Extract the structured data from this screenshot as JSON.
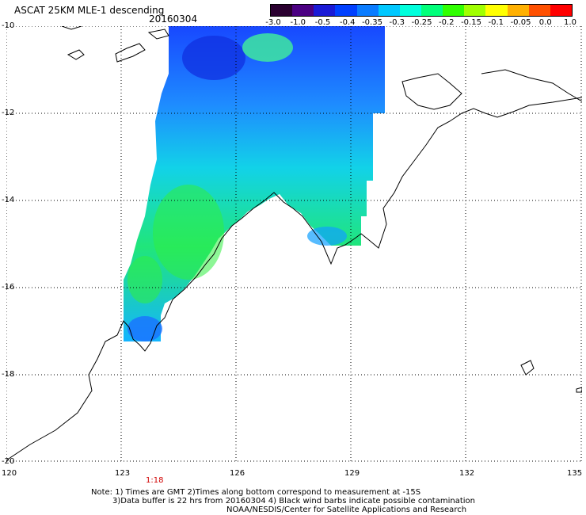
{
  "header": {
    "title": "ASCAT 25KM MLE-1 descending",
    "date": "20160304"
  },
  "colorbar": {
    "colors": [
      "#2a0030",
      "#4b0082",
      "#1a1ad6",
      "#0040ff",
      "#0a7cff",
      "#00c8ff",
      "#00ffdc",
      "#00ff7a",
      "#30ff00",
      "#a0ff00",
      "#ffff00",
      "#ffb000",
      "#ff5000",
      "#ff0000"
    ],
    "labels": [
      "-3.0",
      "-1.0",
      "-0.5",
      "-0.4",
      "-0.35",
      "-0.3",
      "-0.25",
      "-0.2",
      "-0.15",
      "-0.1",
      "-0.05",
      "0.0",
      "1.0"
    ]
  },
  "map": {
    "lat_labels": [
      "-10",
      "-12",
      "-14",
      "-16",
      "-18",
      "-20"
    ],
    "lon_labels": [
      "120",
      "123",
      "126",
      "129",
      "132",
      "135"
    ],
    "time_label": "1:18"
  },
  "notes": {
    "line1": "Note: 1) Times are GMT 2)Times along bottom correspond to measurement at -15S",
    "line2": "3)Data buffer is 22 hrs from 20160304 4) Black wind barbs indicate possible contamination",
    "line3": "NOAA/NESDIS/Center for Satellite Applications and Research"
  }
}
